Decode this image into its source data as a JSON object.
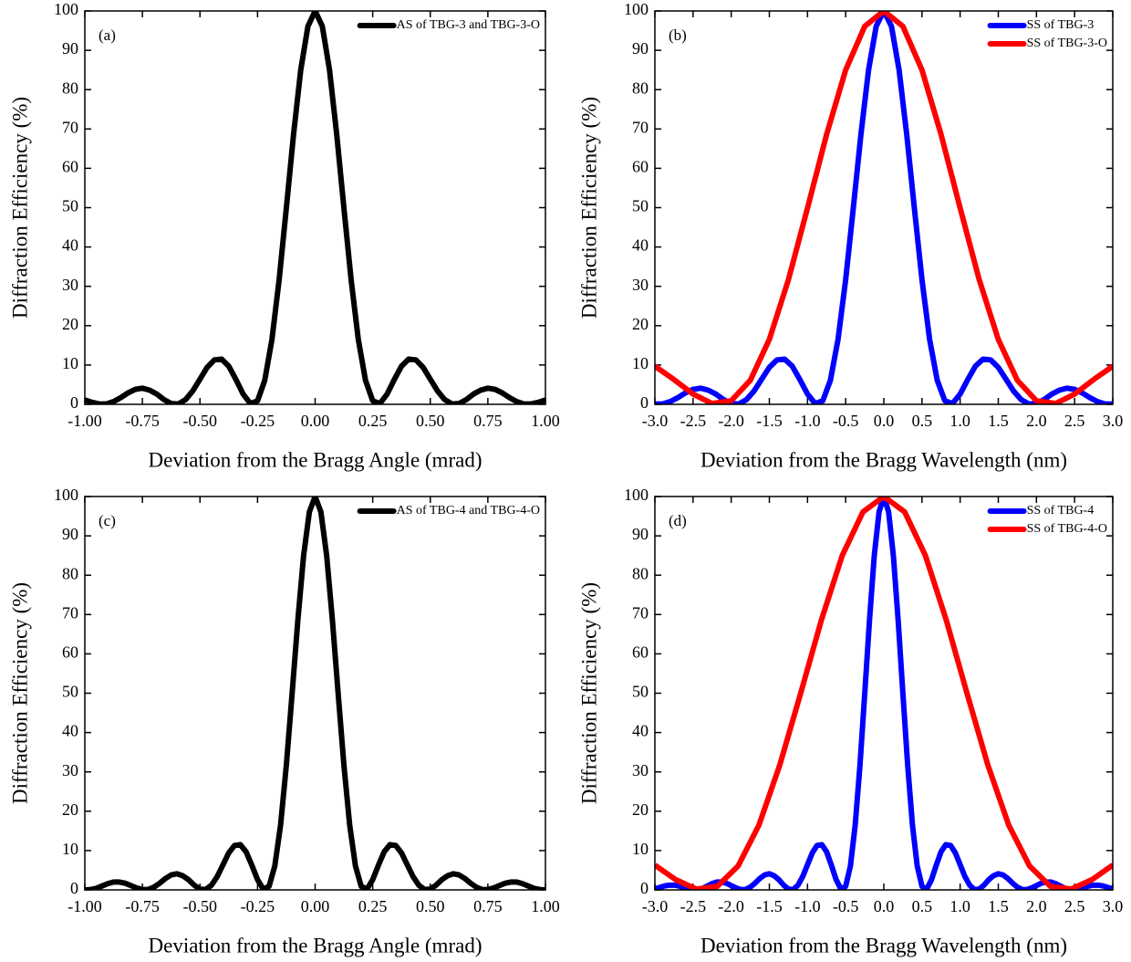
{
  "chart_data": [
    {
      "type": "line",
      "annotation": "(a)",
      "xlabel": "Deviation from the Bragg Angle (mrad)",
      "ylabel": "Diffraction Efficiency (%)",
      "xlim": [
        -1,
        1
      ],
      "ylim": [
        0,
        100
      ],
      "xticks": [
        {
          "value": -1,
          "label": "-1.00"
        },
        -0.75,
        {
          "value": -0.5,
          "label": "-0.50"
        },
        -0.25,
        {
          "value": 0,
          "label": "0.00"
        },
        0.25,
        {
          "value": 0.5,
          "label": "0.50"
        },
        0.75,
        {
          "value": 1,
          "label": "1.00"
        }
      ],
      "yticks": [
        0,
        10,
        20,
        30,
        40,
        50,
        60,
        70,
        80,
        90,
        100
      ],
      "legend": "upper right",
      "series": [
        {
          "name": "AS of TBG-3 and TBG-3-O",
          "color": "#000000",
          "x": [
            -1,
            -0.96875,
            -0.9375,
            -0.90625,
            -0.875,
            -0.84375,
            -0.8125,
            -0.78125,
            -0.75,
            -0.71875,
            -0.6875,
            -0.65625,
            -0.625,
            -0.59375,
            -0.5625,
            -0.53125,
            -0.5,
            -0.46875,
            -0.4375,
            -0.40625,
            -0.375,
            -0.34375,
            -0.3125,
            -0.28125,
            -0.25,
            -0.21875,
            -0.1875,
            -0.15625,
            -0.125,
            -0.09375,
            -0.0625,
            -0.03125,
            0,
            0.03125,
            0.0625,
            0.09375,
            0.125,
            0.15625,
            0.1875,
            0.21875,
            0.25,
            0.28125,
            0.3125,
            0.34375,
            0.375,
            0.40625,
            0.4375,
            0.46875,
            0.5,
            0.53125,
            0.5625,
            0.59375,
            0.625,
            0.65625,
            0.6875,
            0.71875,
            0.75,
            0.78125,
            0.8125,
            0.84375,
            0.875,
            0.90625,
            0.9375,
            0.96875,
            1
          ],
          "values": [
            1.1,
            0.5,
            0.1,
            0.1,
            0.7,
            1.7,
            2.9,
            3.8,
            4.1,
            3.6,
            2.6,
            1.2,
            0.2,
            0.1,
            1.2,
            3.4,
            6.4,
            9.4,
            11.3,
            11.5,
            9.7,
            6.3,
            2.6,
            0.2,
            0.9,
            6.1,
            16.5,
            31.7,
            49.9,
            68.6,
            85,
            96.1,
            100,
            96.1,
            85,
            68.6,
            49.9,
            31.7,
            16.5,
            6.1,
            0.9,
            0.2,
            2.6,
            6.3,
            9.7,
            11.5,
            11.3,
            9.4,
            6.4,
            3.4,
            1.2,
            0.1,
            0.2,
            1.2,
            2.6,
            3.6,
            4.1,
            3.8,
            2.9,
            1.7,
            0.7,
            0.1,
            0.1,
            0.5,
            1.1
          ]
        }
      ]
    },
    {
      "type": "line",
      "annotation": "(b)",
      "xlabel": "Deviation from the Bragg Wavelength (nm)",
      "ylabel": "Diffraction Efficiency (%)",
      "xlim": [
        -3,
        3
      ],
      "ylim": [
        0,
        100
      ],
      "xticks": [
        {
          "value": -3,
          "label": "-3.0"
        },
        -2.5,
        {
          "value": -2,
          "label": "-2.0"
        },
        -1.5,
        {
          "value": -1,
          "label": "-1.0"
        },
        -0.5,
        {
          "value": 0,
          "label": "0.0"
        },
        0.5,
        {
          "value": 1,
          "label": "1.0"
        },
        1.5,
        {
          "value": 2,
          "label": "2.0"
        },
        2.5,
        {
          "value": 3,
          "label": "3.0"
        }
      ],
      "yticks": [
        0,
        10,
        20,
        30,
        40,
        50,
        60,
        70,
        80,
        90,
        100
      ],
      "legend": "upper right",
      "series": [
        {
          "name": "SS of TBG-3",
          "color": "#0000ff",
          "x": [
            -3,
            -2.9,
            -2.8,
            -2.7,
            -2.6,
            -2.5,
            -2.4,
            -2.3,
            -2.2,
            -2.1,
            -2,
            -1.9,
            -1.8,
            -1.7,
            -1.6,
            -1.5,
            -1.4,
            -1.3,
            -1.2,
            -1.1,
            -1,
            -0.9,
            -0.8,
            -0.7,
            -0.6,
            -0.5,
            -0.4,
            -0.3,
            -0.2,
            -0.1,
            0,
            0.1,
            0.2,
            0.3,
            0.4,
            0.5,
            0.6,
            0.7,
            0.8,
            0.9,
            1,
            1.1,
            1.2,
            1.3,
            1.4,
            1.5,
            1.6,
            1.7,
            1.8,
            1.9,
            2,
            2.1,
            2.2,
            2.3,
            2.4,
            2.5,
            2.6,
            2.7,
            2.8,
            2.9,
            3
          ],
          "values": [
            0.1,
            0.1,
            0.7,
            1.7,
            2.9,
            3.8,
            4.1,
            3.6,
            2.6,
            1.2,
            0.2,
            0.1,
            1.2,
            3.4,
            6.4,
            9.4,
            11.3,
            11.5,
            9.7,
            6.3,
            2.6,
            0.2,
            0.9,
            6.1,
            16.5,
            31.7,
            49.9,
            68.6,
            85,
            96.1,
            100,
            96.1,
            85,
            68.6,
            49.9,
            31.7,
            16.5,
            6.1,
            0.9,
            0.2,
            2.6,
            6.3,
            9.7,
            11.5,
            11.3,
            9.4,
            6.4,
            3.4,
            1.2,
            0.1,
            0.2,
            1.2,
            2.6,
            3.6,
            4.1,
            3.8,
            2.9,
            1.7,
            0.7,
            0.1,
            0.1
          ]
        },
        {
          "name": "SS of TBG-3-O",
          "color": "#ff0000",
          "x": [
            -3,
            -2.75,
            -2.5,
            -2.25,
            -2,
            -1.75,
            -1.5,
            -1.25,
            -1,
            -0.75,
            -0.5,
            -0.25,
            0,
            0.25,
            0.5,
            0.75,
            1,
            1.25,
            1.5,
            1.75,
            2,
            2.25,
            2.5,
            2.75,
            3
          ],
          "values": [
            9.7,
            6.3,
            2.6,
            0.2,
            0.9,
            6.1,
            16.5,
            31.7,
            49.9,
            68.6,
            85,
            96.1,
            100,
            96.1,
            85,
            68.6,
            49.9,
            31.7,
            16.5,
            6.1,
            0.9,
            0.2,
            2.6,
            6.3,
            9.7
          ]
        }
      ]
    },
    {
      "type": "line",
      "annotation": "(c)",
      "xlabel": "Deviation from the Bragg Angle (mrad)",
      "ylabel": "Diffraction Efficiency (%)",
      "xlim": [
        -1,
        1
      ],
      "ylim": [
        0,
        100
      ],
      "xticks": [
        {
          "value": -1,
          "label": "-1.00"
        },
        -0.75,
        {
          "value": -0.5,
          "label": "-0.50"
        },
        -0.25,
        {
          "value": 0,
          "label": "0.00"
        },
        0.25,
        {
          "value": 0.5,
          "label": "0.50"
        },
        0.75,
        {
          "value": 1,
          "label": "1.00"
        }
      ],
      "yticks": [
        0,
        10,
        20,
        30,
        40,
        50,
        60,
        70,
        80,
        90,
        100
      ],
      "legend": "upper right",
      "series": [
        {
          "name": "AS of TBG-4 and TBG-4-O",
          "color": "#000000",
          "x": [
            -1,
            -0.975,
            -0.95,
            -0.925,
            -0.9,
            -0.875,
            -0.85,
            -0.825,
            -0.8,
            -0.775,
            -0.75,
            -0.725,
            -0.7,
            -0.675,
            -0.65,
            -0.625,
            -0.6,
            -0.575,
            -0.55,
            -0.525,
            -0.5,
            -0.475,
            -0.45,
            -0.425,
            -0.4,
            -0.375,
            -0.35,
            -0.325,
            -0.3,
            -0.275,
            -0.25,
            -0.225,
            -0.2,
            -0.175,
            -0.15,
            -0.125,
            -0.1,
            -0.075,
            -0.05,
            -0.025,
            0,
            0.025,
            0.05,
            0.075,
            0.1,
            0.125,
            0.15,
            0.175,
            0.2,
            0.225,
            0.25,
            0.275,
            0.3,
            0.325,
            0.35,
            0.375,
            0.4,
            0.425,
            0.45,
            0.475,
            0.5,
            0.525,
            0.55,
            0.575,
            0.6,
            0.625,
            0.65,
            0.675,
            0.7,
            0.725,
            0.75,
            0.775,
            0.8,
            0.825,
            0.85,
            0.875,
            0.9,
            0.925,
            0.95,
            0.975,
            1
          ],
          "values": [
            0,
            0.1,
            0.4,
            1,
            1.6,
            2,
            2,
            1.7,
            1.1,
            0.5,
            0.1,
            0.1,
            0.7,
            1.7,
            2.9,
            3.8,
            4.1,
            3.6,
            2.6,
            1.2,
            0.2,
            0.1,
            1.2,
            3.4,
            6.4,
            9.4,
            11.3,
            11.5,
            9.7,
            6.3,
            2.6,
            0.2,
            0.9,
            6.1,
            16.5,
            31.7,
            49.9,
            68.6,
            85,
            96.1,
            100,
            96.1,
            85,
            68.6,
            49.9,
            31.7,
            16.5,
            6.1,
            0.9,
            0.2,
            2.6,
            6.3,
            9.7,
            11.5,
            11.3,
            9.4,
            6.4,
            3.4,
            1.2,
            0.1,
            0.2,
            1.2,
            2.6,
            3.6,
            4.1,
            3.8,
            2.9,
            1.7,
            0.7,
            0.1,
            0.1,
            0.5,
            1.1,
            1.7,
            2,
            2,
            1.6,
            1,
            0.4,
            0.1,
            0
          ]
        }
      ]
    },
    {
      "type": "line",
      "annotation": "(d)",
      "xlabel": "Deviation from the Bragg Wavelength (nm)",
      "ylabel": "Diffraction Efficiency (%)",
      "xlim": [
        -3,
        3
      ],
      "ylim": [
        0,
        100
      ],
      "xticks": [
        {
          "value": -3,
          "label": "-3.0"
        },
        -2.5,
        {
          "value": -2,
          "label": "-2.0"
        },
        -1.5,
        {
          "value": -1,
          "label": "-1.0"
        },
        -0.5,
        {
          "value": 0,
          "label": "0.0"
        },
        0.5,
        {
          "value": 1,
          "label": "1.0"
        },
        1.5,
        {
          "value": 2,
          "label": "2.0"
        },
        2.5,
        {
          "value": 3,
          "label": "3.0"
        }
      ],
      "yticks": [
        0,
        10,
        20,
        30,
        40,
        50,
        60,
        70,
        80,
        90,
        100
      ],
      "legend": "upper right",
      "series": [
        {
          "name": "SS of TBG-4",
          "color": "#0000ff",
          "x": [
            -3,
            -2.9375,
            -2.875,
            -2.8125,
            -2.75,
            -2.6875,
            -2.625,
            -2.5625,
            -2.5,
            -2.4375,
            -2.375,
            -2.3125,
            -2.25,
            -2.1875,
            -2.125,
            -2.0625,
            -2,
            -1.9375,
            -1.875,
            -1.8125,
            -1.75,
            -1.6875,
            -1.625,
            -1.5625,
            -1.5,
            -1.4375,
            -1.375,
            -1.3125,
            -1.25,
            -1.1875,
            -1.125,
            -1.0625,
            -1,
            -0.9375,
            -0.875,
            -0.8125,
            -0.75,
            -0.6875,
            -0.625,
            -0.5625,
            -0.5,
            -0.4375,
            -0.375,
            -0.3125,
            -0.25,
            -0.1875,
            -0.125,
            -0.0625,
            0,
            0.0625,
            0.125,
            0.1875,
            0.25,
            0.3125,
            0.375,
            0.4375,
            0.5,
            0.5625,
            0.625,
            0.6875,
            0.75,
            0.8125,
            0.875,
            0.9375,
            1,
            1.0625,
            1.125,
            1.1875,
            1.25,
            1.3125,
            1.375,
            1.4375,
            1.5,
            1.5625,
            1.625,
            1.6875,
            1.75,
            1.8125,
            1.875,
            1.9375,
            2,
            2.0625,
            2.125,
            2.1875,
            2.25,
            2.3125,
            2.375,
            2.4375,
            2.5,
            2.5625,
            2.625,
            2.6875,
            2.75,
            2.8125,
            2.875,
            2.9375,
            3
          ],
          "values": [
            0.3,
            0.6,
            1,
            1.2,
            1.2,
            1,
            0.6,
            0.2,
            0,
            0.1,
            0.4,
            1,
            1.6,
            2,
            2,
            1.7,
            1.1,
            0.5,
            0.1,
            0.1,
            0.7,
            1.7,
            2.9,
            3.8,
            4.1,
            3.6,
            2.6,
            1.2,
            0.2,
            0.1,
            1.2,
            3.4,
            6.4,
            9.4,
            11.3,
            11.5,
            9.7,
            6.3,
            2.6,
            0.2,
            0.9,
            6.1,
            16.5,
            31.7,
            49.9,
            68.6,
            85,
            96.1,
            100,
            96.1,
            85,
            68.6,
            49.9,
            31.7,
            16.5,
            6.1,
            0.9,
            0.2,
            2.6,
            6.3,
            9.7,
            11.5,
            11.3,
            9.4,
            6.4,
            3.4,
            1.2,
            0.1,
            0.2,
            1.2,
            2.6,
            3.6,
            4.1,
            3.8,
            2.9,
            1.7,
            0.7,
            0.1,
            0.1,
            0.5,
            1.1,
            1.7,
            2,
            2,
            1.6,
            1,
            0.4,
            0.1,
            0,
            0.2,
            0.6,
            1,
            1.2,
            1.2,
            1,
            0.6,
            0.3
          ]
        },
        {
          "name": "SS of TBG-4-O",
          "color": "#ff0000",
          "x": [
            -3,
            -2.727,
            -2.455,
            -2.182,
            -1.909,
            -1.636,
            -1.364,
            -1.091,
            -0.818,
            -0.545,
            -0.273,
            0,
            0.273,
            0.545,
            0.818,
            1.091,
            1.364,
            1.636,
            1.909,
            2.182,
            2.455,
            2.727,
            3
          ],
          "values": [
            6.3,
            2.6,
            0.2,
            0.9,
            6.1,
            16.5,
            31.7,
            49.9,
            68.6,
            85,
            96.1,
            100,
            96.1,
            85,
            68.6,
            49.9,
            31.7,
            16.5,
            6.1,
            0.9,
            0.2,
            2.6,
            6.3
          ]
        }
      ]
    }
  ]
}
